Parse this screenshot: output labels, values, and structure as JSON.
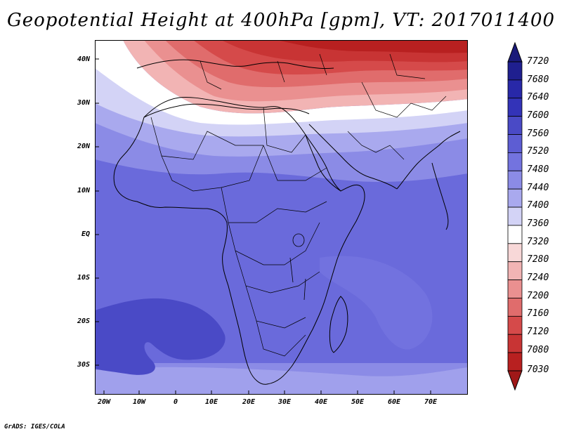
{
  "title": "Geopotential Height at 400hPa [gpm], VT: 2017011400",
  "map": {
    "lat_labels": [
      "40N",
      "30N",
      "20N",
      "10N",
      "EQ",
      "10S",
      "20S",
      "30S"
    ],
    "lon_labels": [
      "20W",
      "10W",
      "0",
      "10E",
      "20E",
      "30E",
      "40E",
      "50E",
      "60E",
      "70E"
    ]
  },
  "colorbar": {
    "levels": [
      "7720",
      "7680",
      "7640",
      "7600",
      "7560",
      "7520",
      "7480",
      "7440",
      "7400",
      "7360",
      "7320",
      "7280",
      "7240",
      "7200",
      "7160",
      "7120",
      "7080",
      "7030"
    ],
    "colors": [
      "#1f1f8f",
      "#2828a8",
      "#3333b8",
      "#4a4ac6",
      "#5d5dd3",
      "#7373df",
      "#8b8be6",
      "#a9a9ee",
      "#d3d3f6",
      "#ffffff",
      "#f8d8d8",
      "#f2b4b4",
      "#ea9090",
      "#e06c6c",
      "#d54a4a",
      "#c83434",
      "#b82020"
    ]
  },
  "credit": "GrADS: IGES/COLA"
}
